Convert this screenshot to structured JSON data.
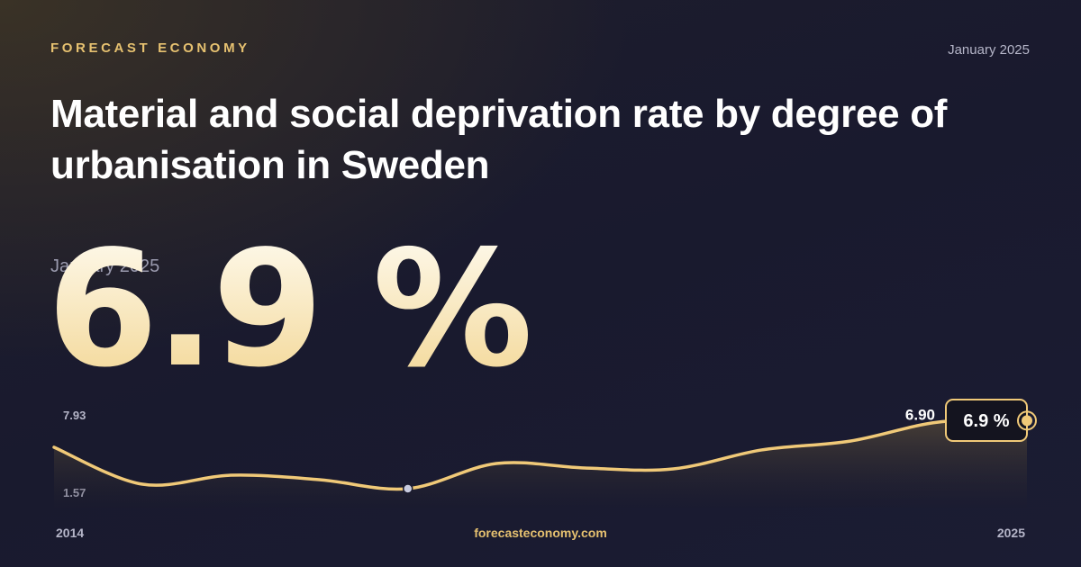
{
  "brand": "FORECAST ECONOMY",
  "date": "January 2025",
  "headline": "6.9 %",
  "site": "forecasteconomy.com",
  "chart_data": {
    "type": "line",
    "title": "Material and social deprivation rate by degree of urbanisation in Sweden",
    "x": [
      2014,
      2015,
      2016,
      2017,
      2018,
      2019,
      2020,
      2021,
      2022,
      2023,
      2024,
      2025
    ],
    "series": [
      {
        "name": "Sweden",
        "color": "#f0c978",
        "values": [
          4.92,
          2.17,
          2.84,
          2.51,
          1.84,
          3.71,
          3.38,
          3.31,
          4.72,
          5.38,
          6.79,
          6.9
        ]
      }
    ],
    "last_value_label": "6.90",
    "xlim": [
      2014,
      2025
    ],
    "xticks": [
      2014,
      2025
    ],
    "ylim": [
      1.57,
      7.93
    ],
    "yticks": [
      1.57,
      7.93
    ]
  }
}
